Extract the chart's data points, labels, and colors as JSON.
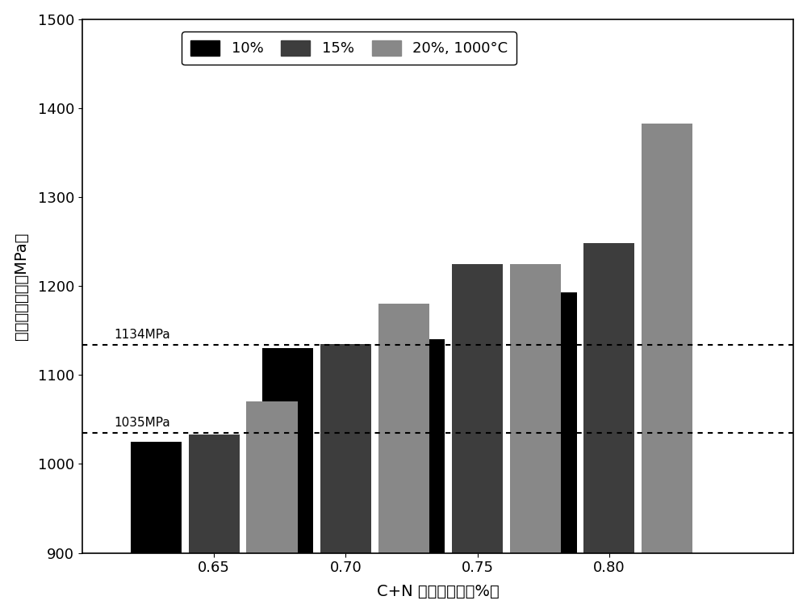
{
  "categories": [
    0.65,
    0.7,
    0.75,
    0.8
  ],
  "series": {
    "10%": [
      1025,
      1130,
      1140,
      1193
    ],
    "15%": [
      1033,
      1135,
      1225,
      1248
    ],
    "20%, 1000°C": [
      1070,
      1180,
      1225,
      1383
    ]
  },
  "colors": {
    "10%": "#000000",
    "15%": "#3d3d3d",
    "20%, 1000°C": "#888888"
  },
  "hlines": [
    {
      "y": 1035,
      "label": "1035MPa"
    },
    {
      "y": 1134,
      "label": "1134MPa"
    }
  ],
  "ylabel": "室温抗拉强度（MPa）",
  "xlabel": "C+N 质量百分数（%）",
  "ylim": [
    900,
    1500
  ],
  "ybase": 900,
  "yticks": [
    900,
    1000,
    1100,
    1200,
    1300,
    1400,
    1500
  ],
  "bar_width": 0.022,
  "xlim": [
    0.6,
    0.87
  ]
}
